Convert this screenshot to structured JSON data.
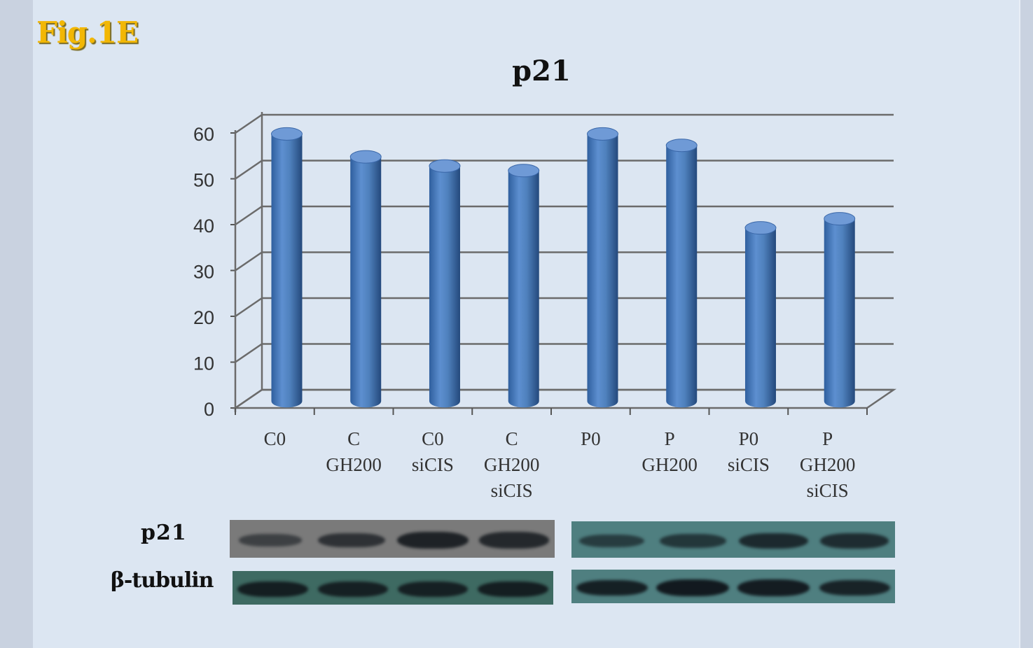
{
  "figure_label": "Fig.1E",
  "chart_data": {
    "type": "bar",
    "title": "p21",
    "xlabel": "",
    "ylabel": "",
    "ylim": [
      0,
      60
    ],
    "yticks": [
      0,
      10,
      20,
      30,
      40,
      50,
      60
    ],
    "grid": true,
    "three_d": true,
    "categories": [
      [
        "C0"
      ],
      [
        "C",
        "GH200"
      ],
      [
        "C0",
        "siCIS"
      ],
      [
        "C",
        "GH200",
        "siCIS"
      ],
      [
        "P0"
      ],
      [
        "P",
        "GH200"
      ],
      [
        "P0",
        "siCIS"
      ],
      [
        "P",
        "GH200",
        "siCIS"
      ]
    ],
    "values": [
      58,
      53,
      51,
      50,
      58,
      55.5,
      37.5,
      39.5
    ],
    "bar_color": "#4f81bd"
  },
  "blots": {
    "rows": [
      {
        "label": "p21",
        "panels": [
          {
            "color": "#7a7a7a",
            "band_intensity": [
              0.35,
              0.6,
              0.85,
              0.75
            ]
          },
          {
            "color": "#4f7f80",
            "band_intensity": [
              0.45,
              0.55,
              0.75,
              0.7
            ]
          }
        ]
      },
      {
        "label": "β-tubulin",
        "panels": [
          {
            "color": "#3e6a62",
            "band_intensity": [
              0.9,
              0.85,
              0.85,
              0.9
            ]
          },
          {
            "color": "#4f7f80",
            "band_intensity": [
              0.9,
              1.0,
              0.95,
              0.85
            ]
          }
        ]
      }
    ]
  }
}
